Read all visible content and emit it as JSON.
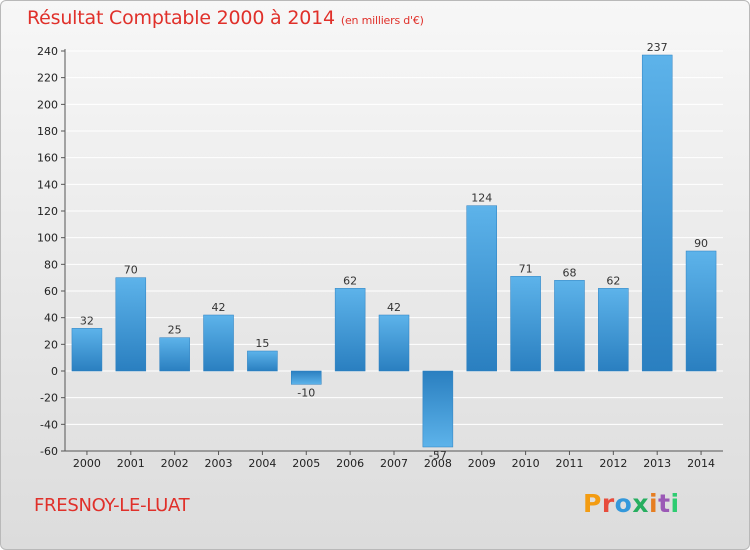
{
  "header": {
    "title": "Résultat Comptable 2000 à 2014",
    "subtitle": "(en milliers d'€)"
  },
  "footer": {
    "town": "FRESNOY-LE-LUAT",
    "logo": {
      "letters": [
        "P",
        "r",
        "o",
        "x",
        "i",
        "t",
        "i"
      ]
    }
  },
  "colors": {
    "title": "#e0302a",
    "bar_light": "#5db3ea",
    "bar_dark": "#2a7fc0",
    "grid": "#ffffff",
    "logo": [
      "#f39c12",
      "#e74c3c",
      "#3498db",
      "#27ae60",
      "#e67e22",
      "#9b59b6",
      "#2ecc71"
    ]
  },
  "chart_data": {
    "type": "bar",
    "title": "Résultat Comptable 2000 à 2014",
    "subtitle": "(en milliers d'€)",
    "xlabel": "",
    "ylabel": "",
    "categories": [
      "2000",
      "2001",
      "2002",
      "2003",
      "2004",
      "2005",
      "2006",
      "2007",
      "2008",
      "2009",
      "2010",
      "2011",
      "2012",
      "2013",
      "2014"
    ],
    "values": [
      32,
      70,
      25,
      42,
      15,
      -10,
      62,
      42,
      -57,
      124,
      71,
      68,
      62,
      237,
      90
    ],
    "value_labels": [
      "32",
      "70",
      "25",
      "42",
      "15",
      "-10",
      "62",
      "42",
      "-57",
      "124",
      "71",
      "68",
      "62",
      "237",
      "90"
    ],
    "ylim": [
      -60,
      240
    ],
    "yticks": [
      -60,
      -40,
      -20,
      0,
      20,
      40,
      60,
      80,
      100,
      120,
      140,
      160,
      180,
      200,
      220,
      240
    ],
    "grid": true,
    "legend": "none"
  }
}
